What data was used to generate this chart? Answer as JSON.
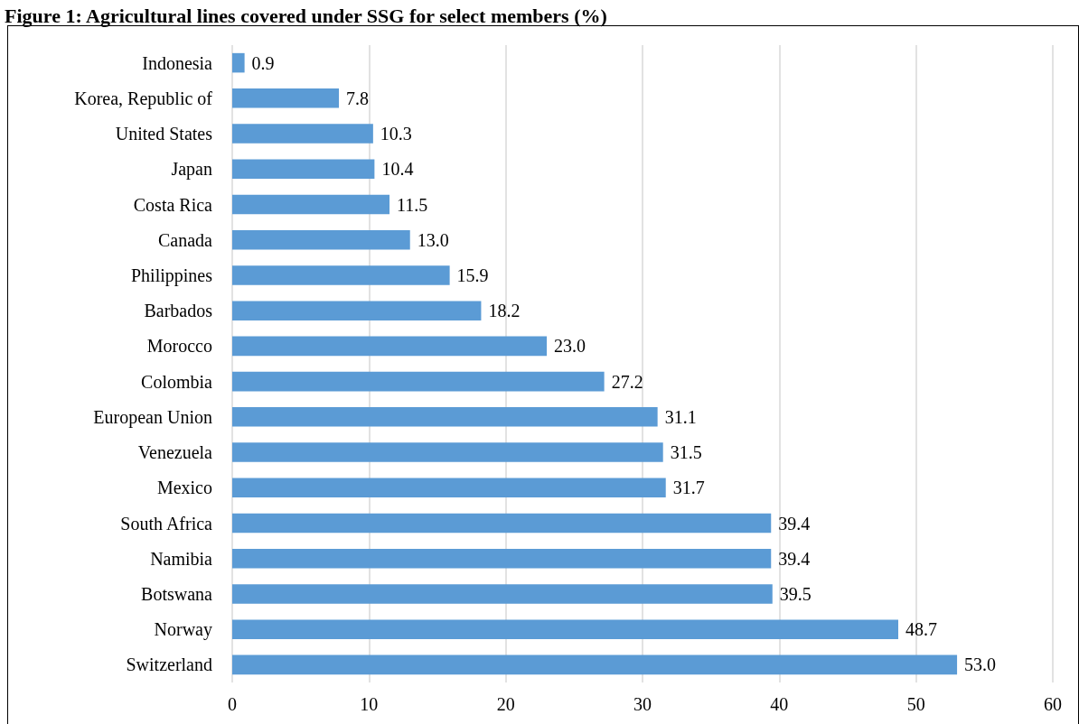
{
  "chart_data": {
    "type": "bar",
    "orientation": "horizontal",
    "title": "Figure 1: Agricultural lines covered under SSG for select members (%)",
    "categories": [
      "Indonesia",
      "Korea, Republic of",
      "United States",
      "Japan",
      "Costa Rica",
      "Canada",
      "Philippines",
      "Barbados",
      "Morocco",
      "Colombia",
      "European Union",
      "Venezuela",
      "Mexico",
      "South Africa",
      "Namibia",
      "Botswana",
      "Norway",
      "Switzerland"
    ],
    "values": [
      0.9,
      7.8,
      10.3,
      10.4,
      11.5,
      13.0,
      15.9,
      18.2,
      23.0,
      27.2,
      31.1,
      31.5,
      31.7,
      39.4,
      39.4,
      39.5,
      48.7,
      53.0
    ],
    "value_labels": [
      "0.9",
      "7.8",
      "10.3",
      "10.4",
      "11.5",
      "13.0",
      "15.9",
      "18.2",
      "23.0",
      "27.2",
      "31.1",
      "31.5",
      "31.7",
      "39.4",
      "39.4",
      "39.5",
      "48.7",
      "53.0"
    ],
    "color": "#5b9bd5",
    "xlim": [
      0,
      60
    ],
    "xticks": [
      0,
      10,
      20,
      30,
      40,
      50,
      60
    ],
    "grid": "x"
  }
}
